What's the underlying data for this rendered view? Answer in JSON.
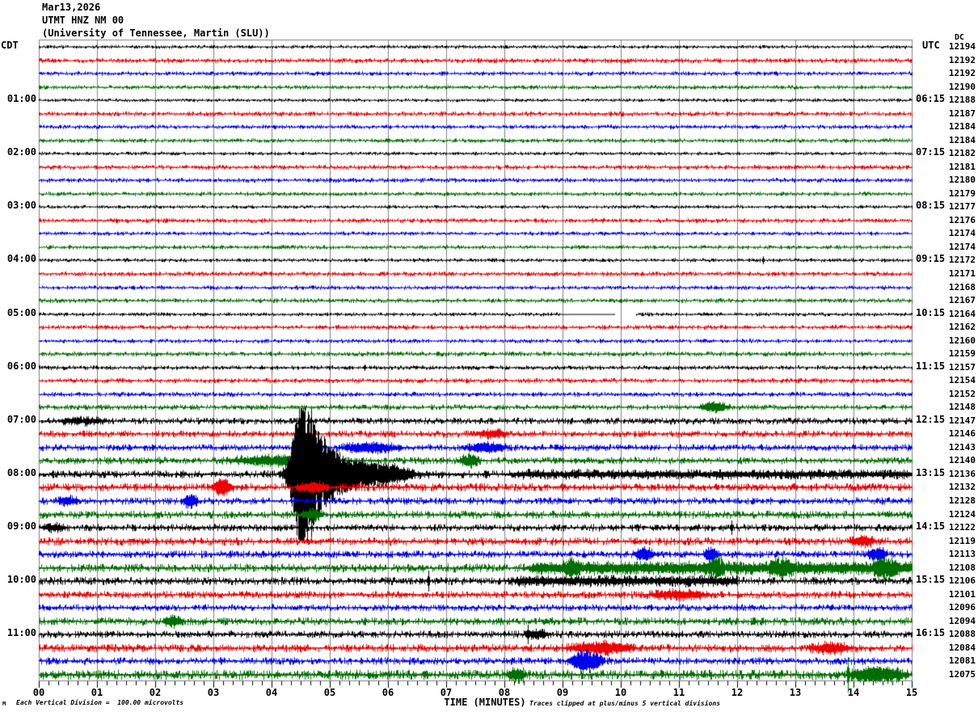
{
  "title": {
    "line1": "Mar13,2026",
    "line2": "UTMT HNZ NM 00",
    "line3": "(University of Tennessee, Martin (SLU))"
  },
  "corner_labels": {
    "left_tz": "CDT",
    "right_tz": "UTC",
    "dc_header": "DC"
  },
  "left_axis_times": [
    "01:00",
    "02:00",
    "03:00",
    "04:00",
    "05:00",
    "06:00",
    "07:00",
    "08:00",
    "09:00",
    "10:00",
    "11:00"
  ],
  "right_axis_times": [
    "06:15",
    "07:15",
    "08:15",
    "09:15",
    "10:15",
    "11:15",
    "12:15",
    "13:15",
    "14:15",
    "15:15",
    "16:15"
  ],
  "x_axis": {
    "label": "TIME (MINUTES)",
    "tick_labels": [
      "00",
      "01",
      "02",
      "03",
      "04",
      "05",
      "06",
      "07",
      "08",
      "09",
      "10",
      "11",
      "12",
      "13",
      "14",
      "15"
    ]
  },
  "footer": {
    "scale_note": "Each Vertical Division =  100.00 microvolts",
    "clip_note": "Traces clipped at plus/minus 5 vertical divisions",
    "watermark": "M"
  },
  "colors": {
    "black": "#000000",
    "red": "#ee0000",
    "blue": "#0000ee",
    "green": "#006e00",
    "grid": "#808080"
  },
  "chart_data": {
    "type": "line",
    "subtype": "helicorder-seismogram",
    "title": "UTMT HNZ NM 00 (University of Tennessee, Martin (SLU)) Mar13,2026",
    "xlabel": "TIME (MINUTES)",
    "x_range_minutes": [
      0,
      15
    ],
    "minutes_per_line": 15,
    "lines_per_hour": 4,
    "clip_divisions": 5,
    "microvolts_per_division": 100.0,
    "left_timezone": "CDT",
    "right_timezone": "UTC",
    "main_event": "large clipped earthquake burst on 08:00 CDT / 13:15 UTC line near minute 4.7",
    "rows": [
      {
        "dc": 12194,
        "color": "black",
        "noise": 1.2,
        "events": []
      },
      {
        "dc": 12192,
        "color": "red",
        "noise": 1.6,
        "events": []
      },
      {
        "dc": 12192,
        "color": "blue",
        "noise": 1.4,
        "events": []
      },
      {
        "dc": 12190,
        "color": "green",
        "noise": 1.4,
        "events": []
      },
      {
        "dc": 12188,
        "color": "black",
        "noise": 1.2,
        "events": []
      },
      {
        "dc": 12187,
        "color": "red",
        "noise": 1.6,
        "events": []
      },
      {
        "dc": 12184,
        "color": "blue",
        "noise": 1.4,
        "events": []
      },
      {
        "dc": 12184,
        "color": "green",
        "noise": 1.4,
        "events": []
      },
      {
        "dc": 12182,
        "color": "black",
        "noise": 1.2,
        "events": []
      },
      {
        "dc": 12181,
        "color": "red",
        "noise": 1.5,
        "events": []
      },
      {
        "dc": 12180,
        "color": "blue",
        "noise": 1.5,
        "events": []
      },
      {
        "dc": 12179,
        "color": "green",
        "noise": 1.4,
        "events": []
      },
      {
        "dc": 12177,
        "color": "black",
        "noise": 1.2,
        "events": []
      },
      {
        "dc": 12176,
        "color": "red",
        "noise": 1.5,
        "events": []
      },
      {
        "dc": 12174,
        "color": "blue",
        "noise": 1.3,
        "events": []
      },
      {
        "dc": 12174,
        "color": "green",
        "noise": 1.4,
        "events": []
      },
      {
        "dc": 12172,
        "color": "black",
        "noise": 1.3,
        "events": [
          {
            "type": "spike",
            "t": 12.45,
            "a": 5
          }
        ]
      },
      {
        "dc": 12171,
        "color": "red",
        "noise": 1.5,
        "events": []
      },
      {
        "dc": 12168,
        "color": "blue",
        "noise": 1.4,
        "events": []
      },
      {
        "dc": 12167,
        "color": "green",
        "noise": 1.5,
        "events": []
      },
      {
        "dc": 12164,
        "color": "black",
        "noise": 1.3,
        "events": [
          {
            "type": "flat",
            "t0": 8.95,
            "t1": 9.9
          },
          {
            "type": "gap",
            "t0": 9.9,
            "t1": 10.25
          }
        ]
      },
      {
        "dc": 12162,
        "color": "red",
        "noise": 1.5,
        "events": []
      },
      {
        "dc": 12160,
        "color": "blue",
        "noise": 1.4,
        "events": []
      },
      {
        "dc": 12159,
        "color": "green",
        "noise": 1.6,
        "events": []
      },
      {
        "dc": 12157,
        "color": "black",
        "noise": 1.5,
        "events": [
          {
            "type": "spike",
            "t": 5.6,
            "a": 4
          }
        ]
      },
      {
        "dc": 12154,
        "color": "red",
        "noise": 1.6,
        "events": []
      },
      {
        "dc": 12152,
        "color": "blue",
        "noise": 1.6,
        "events": []
      },
      {
        "dc": 12148,
        "color": "green",
        "noise": 1.8,
        "events": [
          {
            "type": "burst",
            "t0": 11.3,
            "t1": 11.9,
            "a": 5
          }
        ]
      },
      {
        "dc": 12147,
        "color": "black",
        "noise": 2.2,
        "events": [
          {
            "type": "burst",
            "t0": 0.3,
            "t1": 1.2,
            "a": 3
          }
        ]
      },
      {
        "dc": 12146,
        "color": "red",
        "noise": 2.2,
        "events": [
          {
            "type": "burst",
            "t0": 7.5,
            "t1": 8.1,
            "a": 4
          }
        ]
      },
      {
        "dc": 12143,
        "color": "blue",
        "noise": 2.2,
        "events": [
          {
            "type": "burst",
            "t0": 5.1,
            "t1": 6.3,
            "a": 5
          },
          {
            "type": "burst",
            "t0": 7.3,
            "t1": 8.1,
            "a": 5
          }
        ]
      },
      {
        "dc": 12140,
        "color": "green",
        "noise": 2.4,
        "events": [
          {
            "type": "burst",
            "t0": 3.1,
            "t1": 5.3,
            "a": 5
          },
          {
            "type": "burst",
            "t0": 7.2,
            "t1": 7.6,
            "a": 6
          }
        ]
      },
      {
        "dc": 12136,
        "color": "black",
        "noise": 2.6,
        "events": [
          {
            "type": "quake",
            "t0": 4.12,
            "tp": 4.5,
            "a": 110,
            "tau": 0.45,
            "t1": 8.0
          },
          {
            "type": "spike",
            "t": 4.68,
            "a": 82
          },
          {
            "type": "burst",
            "t0": 5.3,
            "t1": 6.5,
            "a": 8
          },
          {
            "type": "envburst",
            "t0": 8.0,
            "t1": 15.0,
            "a": 2
          }
        ]
      },
      {
        "dc": 12132,
        "color": "red",
        "noise": 2.6,
        "events": [
          {
            "type": "burst",
            "t0": 2.95,
            "t1": 3.35,
            "a": 9
          },
          {
            "type": "burst",
            "t0": 4.4,
            "t1": 5.0,
            "a": 5
          }
        ]
      },
      {
        "dc": 12128,
        "color": "blue",
        "noise": 2.4,
        "events": [
          {
            "type": "burst",
            "t0": 0.3,
            "t1": 0.7,
            "a": 4
          },
          {
            "type": "burst",
            "t0": 2.45,
            "t1": 2.75,
            "a": 7
          }
        ]
      },
      {
        "dc": 12124,
        "color": "green",
        "noise": 2.6,
        "events": [
          {
            "type": "burst",
            "t0": 4.5,
            "t1": 4.9,
            "a": 6
          }
        ]
      },
      {
        "dc": 12122,
        "color": "black",
        "noise": 2.4,
        "events": [
          {
            "type": "burst",
            "t0": 0.0,
            "t1": 0.5,
            "a": 3
          },
          {
            "type": "spike",
            "t": 11.9,
            "a": 9
          }
        ]
      },
      {
        "dc": 12119,
        "color": "red",
        "noise": 2.6,
        "events": [
          {
            "type": "burst",
            "t0": 13.9,
            "t1": 14.4,
            "a": 5
          }
        ]
      },
      {
        "dc": 12113,
        "color": "blue",
        "noise": 2.4,
        "events": [
          {
            "type": "burst",
            "t0": 10.2,
            "t1": 10.6,
            "a": 6
          },
          {
            "type": "burst",
            "t0": 11.4,
            "t1": 11.7,
            "a": 7
          },
          {
            "type": "burst",
            "t0": 14.2,
            "t1": 14.6,
            "a": 7
          }
        ]
      },
      {
        "dc": 12108,
        "color": "green",
        "noise": 2.8,
        "events": [
          {
            "type": "envburst",
            "t0": 8.3,
            "t1": 15.0,
            "a": 4
          },
          {
            "type": "burst",
            "t0": 9.0,
            "t1": 9.3,
            "a": 7
          },
          {
            "type": "burst",
            "t0": 11.5,
            "t1": 11.8,
            "a": 8
          },
          {
            "type": "burst",
            "t0": 12.5,
            "t1": 13.0,
            "a": 6
          },
          {
            "type": "burst",
            "t0": 14.3,
            "t1": 14.8,
            "a": 8
          }
        ]
      },
      {
        "dc": 12106,
        "color": "black",
        "noise": 2.6,
        "events": [
          {
            "type": "spike",
            "t": 6.7,
            "a": 13
          },
          {
            "type": "envburst",
            "t0": 8.0,
            "t1": 12.0,
            "a": 3
          }
        ]
      },
      {
        "dc": 12101,
        "color": "red",
        "noise": 2.4,
        "events": [
          {
            "type": "burst",
            "t0": 10.4,
            "t1": 11.6,
            "a": 4
          }
        ]
      },
      {
        "dc": 12096,
        "color": "blue",
        "noise": 2.2,
        "events": []
      },
      {
        "dc": 12094,
        "color": "green",
        "noise": 2.6,
        "events": [
          {
            "type": "burst",
            "t0": 2.1,
            "t1": 2.5,
            "a": 5
          }
        ]
      },
      {
        "dc": 12088,
        "color": "black",
        "noise": 2.4,
        "events": [
          {
            "type": "spike",
            "t": 8.4,
            "a": 12
          },
          {
            "type": "burst",
            "t0": 8.3,
            "t1": 8.8,
            "a": 4
          }
        ]
      },
      {
        "dc": 12084,
        "color": "red",
        "noise": 2.6,
        "events": [
          {
            "type": "burst",
            "t0": 9.0,
            "t1": 10.3,
            "a": 6
          },
          {
            "type": "burst",
            "t0": 13.2,
            "t1": 14.0,
            "a": 5
          }
        ]
      },
      {
        "dc": 12081,
        "color": "blue",
        "noise": 2.4,
        "events": [
          {
            "type": "burst",
            "t0": 9.05,
            "t1": 9.75,
            "a": 11
          },
          {
            "type": "spike",
            "t": 9.3,
            "a": 14
          }
        ]
      },
      {
        "dc": 12075,
        "color": "green",
        "noise": 3.2,
        "events": [
          {
            "type": "burst",
            "t0": 8.0,
            "t1": 8.4,
            "a": 6
          },
          {
            "type": "burst",
            "t0": 13.85,
            "t1": 15.0,
            "a": 8
          },
          {
            "type": "spike",
            "t": 13.9,
            "a": 22
          }
        ]
      }
    ]
  }
}
